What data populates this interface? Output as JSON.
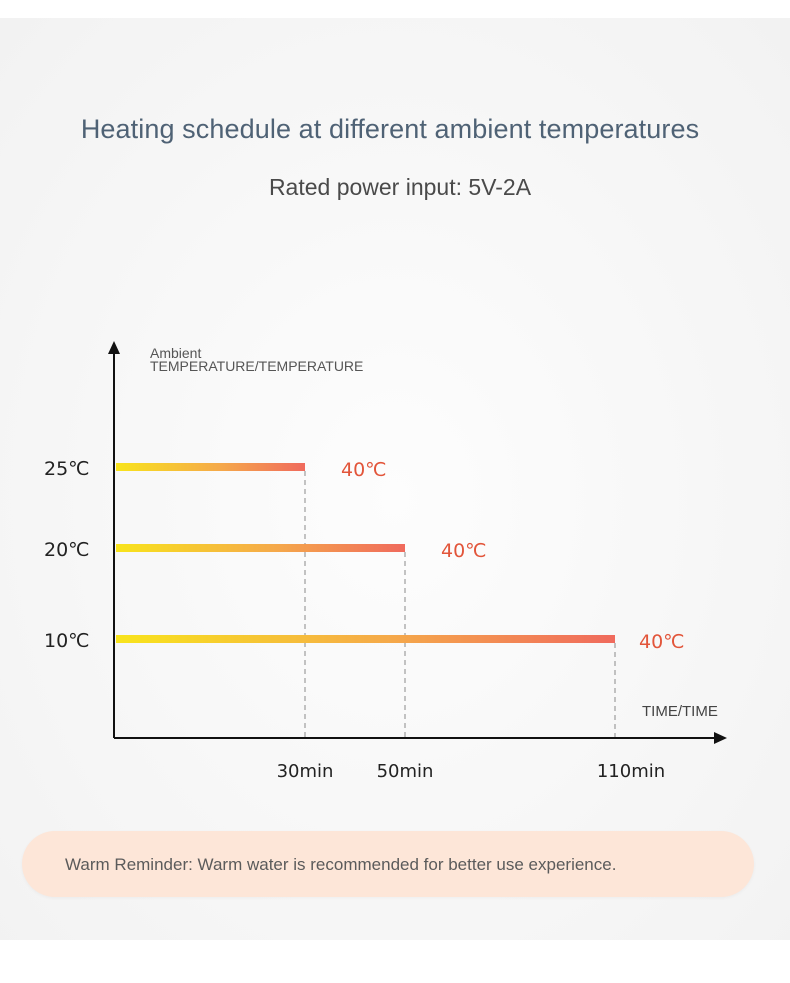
{
  "title": "Heating schedule at different ambient temperatures",
  "subtitle": "Rated power input: 5V-2A",
  "reminder": "Warm Reminder: Warm water is recommended for better use experience.",
  "colors": {
    "bar_start": "#f8e41c",
    "bar_mid": "#f5a94a",
    "bar_end": "#f06a5d",
    "end_label": "#e2553a",
    "axis": "#111111",
    "dashed": "#8a8a8a"
  },
  "chart_data": {
    "type": "bar",
    "orientation": "horizontal",
    "ylabel_line1": "Ambient",
    "ylabel_line2": "TEMPERATURE/TEMPERATURE",
    "xlabel": "TIME/TIME",
    "categories": [
      "25℃",
      "20℃",
      "10℃"
    ],
    "values": [
      30,
      50,
      110
    ],
    "value_unit": "min",
    "x_ticks": [
      "30min",
      "50min",
      "110min"
    ],
    "end_labels": [
      "40℃",
      "40℃",
      "40℃"
    ]
  }
}
